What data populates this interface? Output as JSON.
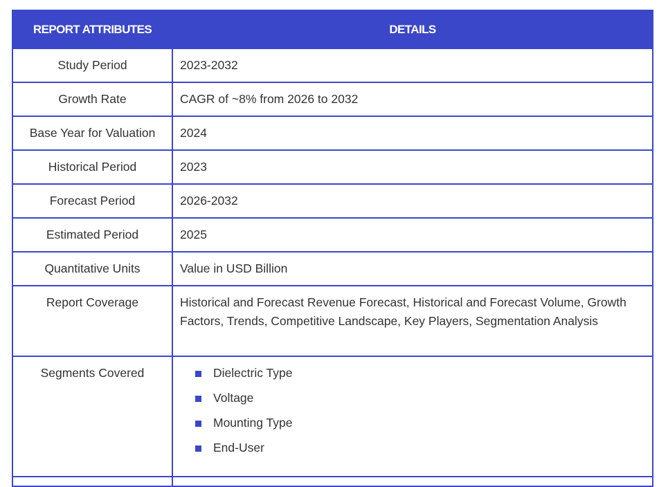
{
  "table": {
    "header": {
      "attribute": "REPORT ATTRIBUTES",
      "details": "DETAILS"
    },
    "rows": [
      {
        "attribute": "Study Period",
        "details": "2023-2032"
      },
      {
        "attribute": "Growth Rate",
        "details": "CAGR of ~8% from 2026 to 2032"
      },
      {
        "attribute": "Base Year for Valuation",
        "details": "2024"
      },
      {
        "attribute": "Historical Period",
        "details": "2023"
      },
      {
        "attribute": "Forecast Period",
        "details": "2026-2032"
      },
      {
        "attribute": "Estimated Period",
        "details": "2025"
      },
      {
        "attribute": "Quantitative Units",
        "details": "Value in USD Billion"
      },
      {
        "attribute": "Report Coverage",
        "details": "Historical and Forecast Revenue Forecast, Historical and Forecast Volume, Growth Factors, Trends, Competitive Landscape, Key Players, Segmentation Analysis"
      }
    ],
    "segments": {
      "attribute": "Segments Covered",
      "items": [
        "Dielectric Type",
        "Voltage",
        "Mounting Type",
        "End-User"
      ]
    }
  },
  "colors": {
    "accent": "#3b47c9",
    "text": "#333333"
  },
  "icons": {
    "bullet": "square-bullet-icon"
  }
}
